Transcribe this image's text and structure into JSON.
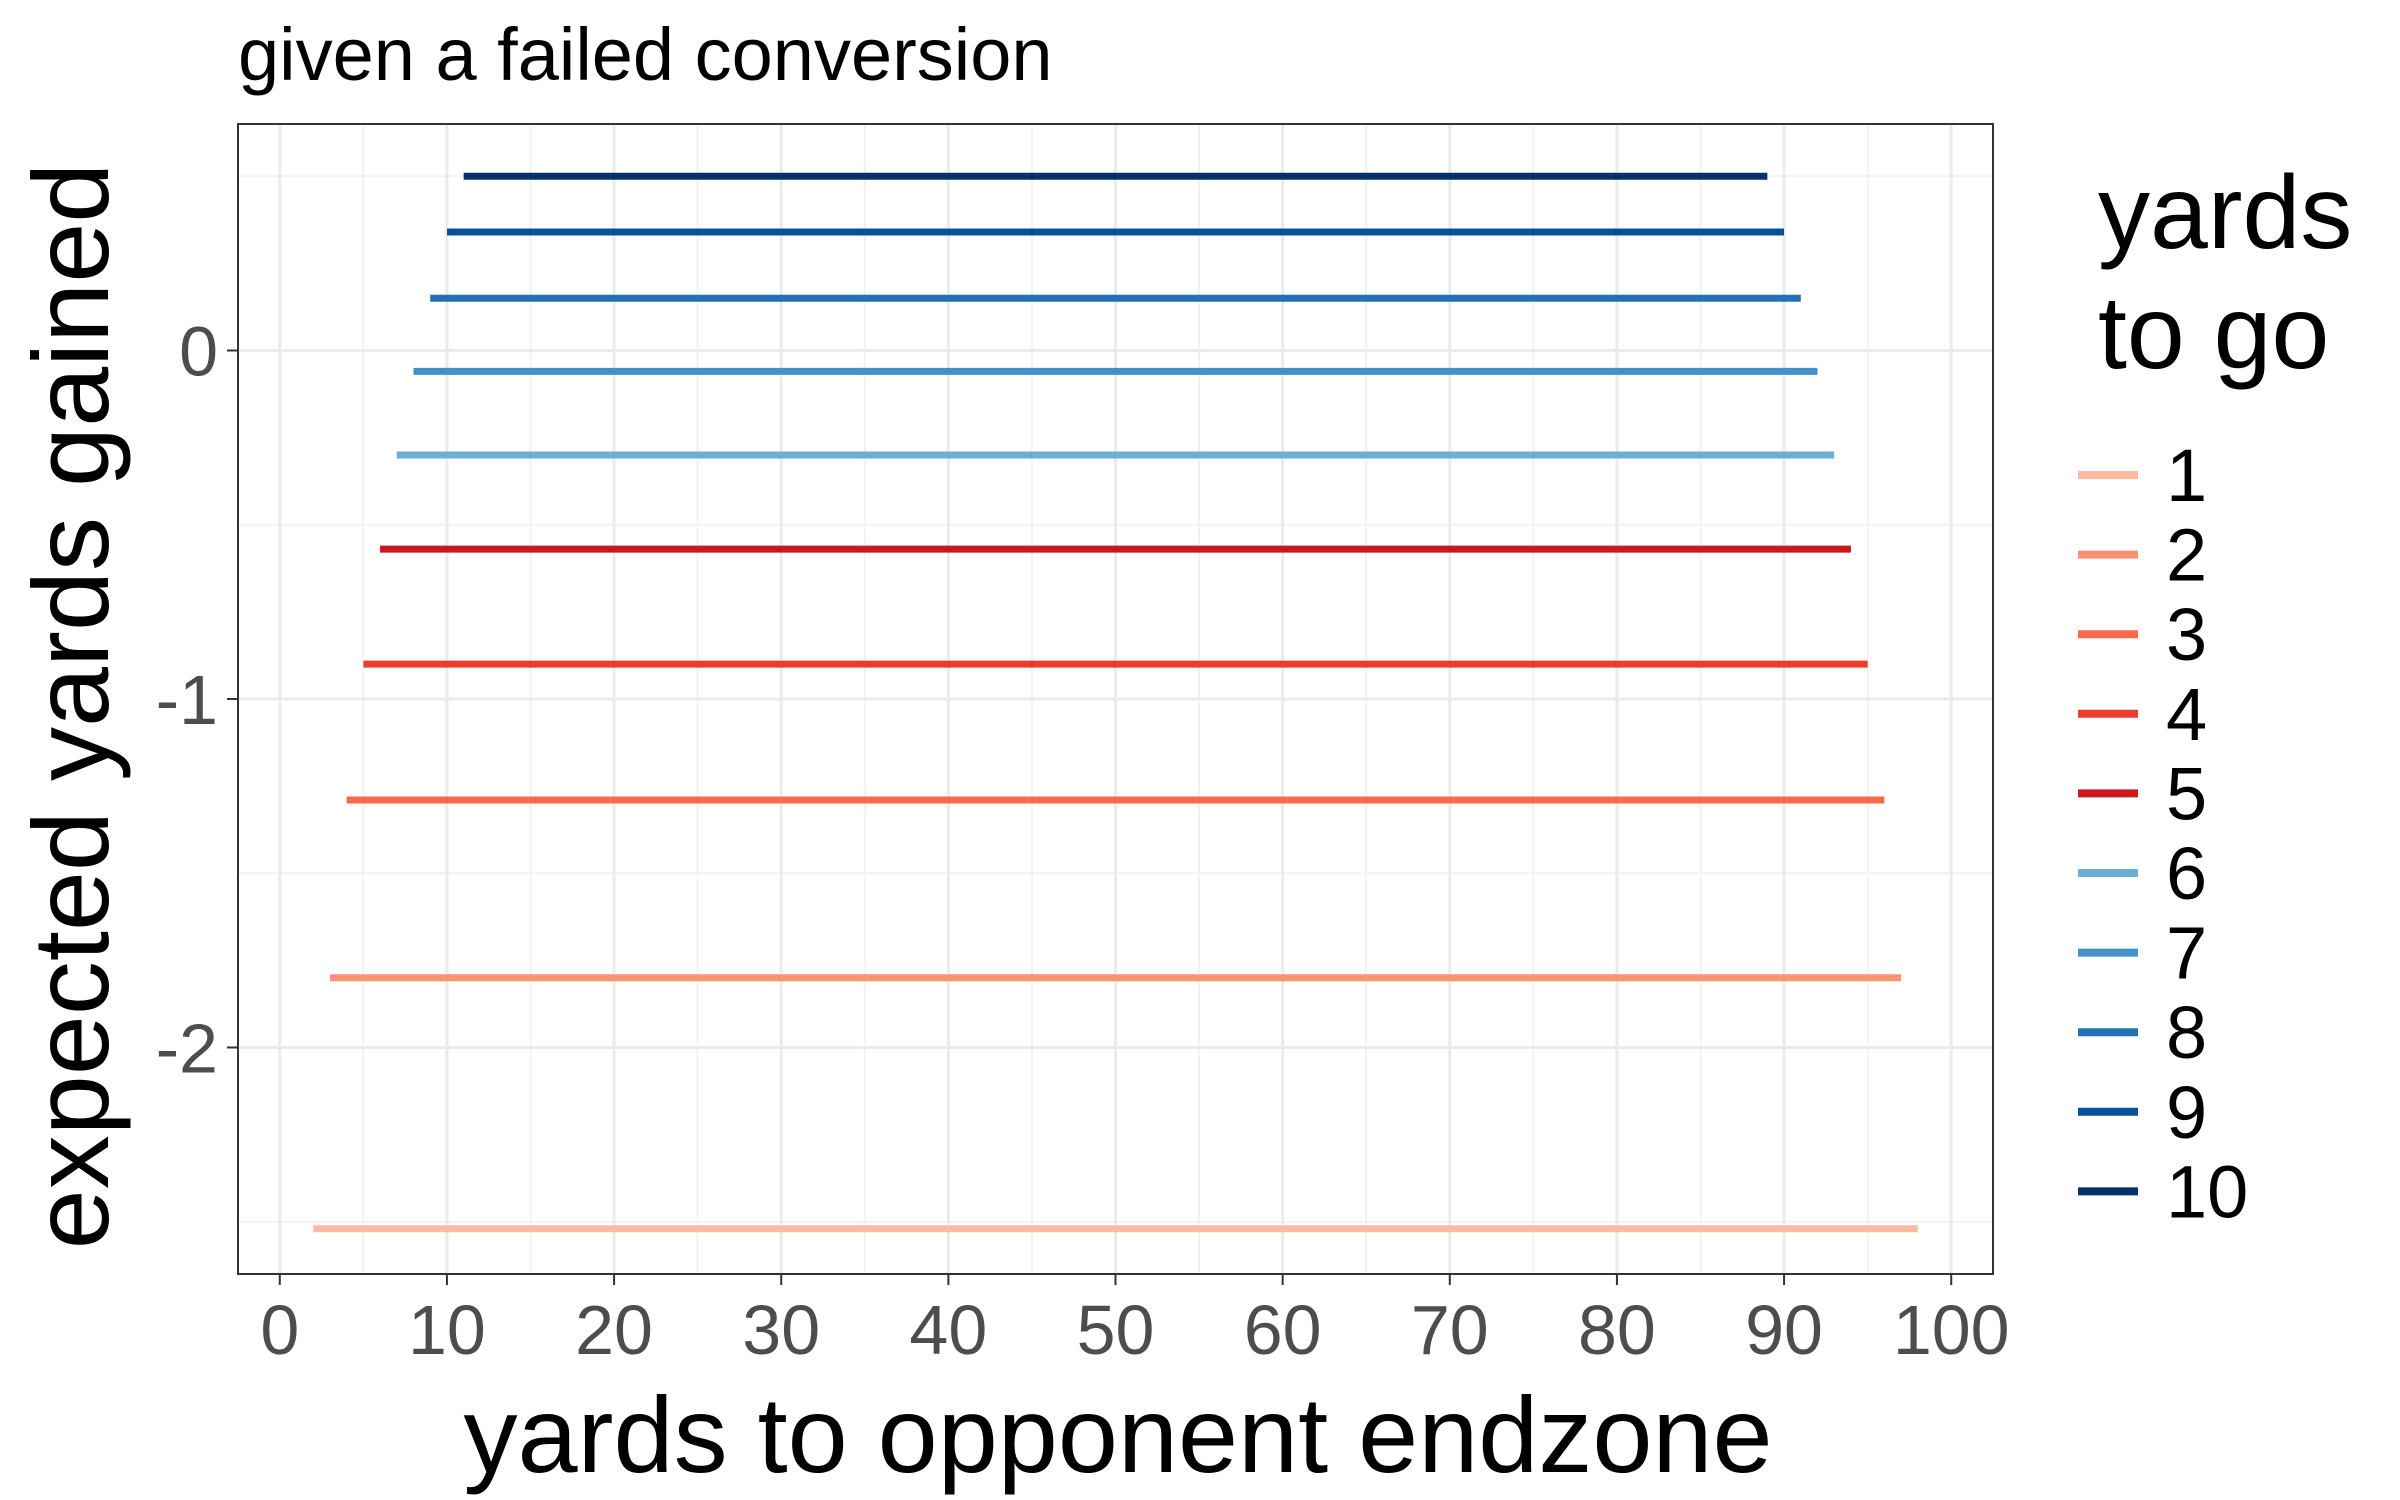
{
  "chart_data": {
    "type": "line",
    "title": "given a failed conversion",
    "xlabel": "yards to opponent endzone",
    "ylabel": "expected yards gained",
    "xlim": [
      -2.5,
      102.5
    ],
    "ylim": [
      -2.65,
      0.65
    ],
    "x_ticks": [
      0,
      10,
      20,
      30,
      40,
      50,
      60,
      70,
      80,
      90,
      100
    ],
    "x_tick_labels": [
      "0",
      "10",
      "20",
      "30",
      "40",
      "50",
      "60",
      "70",
      "80",
      "90",
      "100"
    ],
    "y_ticks": [
      0,
      -1,
      -2
    ],
    "y_tick_labels": [
      "0",
      "-1",
      "-2"
    ],
    "grid": true,
    "legend": {
      "title_lines": [
        "yards",
        "to go"
      ],
      "position": "right"
    },
    "series": [
      {
        "name": "1",
        "color": "#fcbba1",
        "x": [
          2,
          98
        ],
        "y": [
          -2.52,
          -2.52
        ]
      },
      {
        "name": "2",
        "color": "#fc9272",
        "x": [
          3,
          97
        ],
        "y": [
          -1.8,
          -1.8
        ]
      },
      {
        "name": "3",
        "color": "#fb6a4a",
        "x": [
          4,
          96
        ],
        "y": [
          -1.29,
          -1.29
        ]
      },
      {
        "name": "4",
        "color": "#ef3b2c",
        "x": [
          5,
          95
        ],
        "y": [
          -0.9,
          -0.9
        ]
      },
      {
        "name": "5",
        "color": "#cb181d",
        "x": [
          6,
          94
        ],
        "y": [
          -0.57,
          -0.57
        ]
      },
      {
        "name": "6",
        "color": "#6baed6",
        "x": [
          7,
          93
        ],
        "y": [
          -0.3,
          -0.3
        ]
      },
      {
        "name": "7",
        "color": "#4292c6",
        "x": [
          8,
          92
        ],
        "y": [
          -0.06,
          -0.06
        ]
      },
      {
        "name": "8",
        "color": "#2171b5",
        "x": [
          9,
          91
        ],
        "y": [
          0.15,
          0.15
        ]
      },
      {
        "name": "9",
        "color": "#08519c",
        "x": [
          10,
          90
        ],
        "y": [
          0.34,
          0.34
        ]
      },
      {
        "name": "10",
        "color": "#08306b",
        "x": [
          11,
          89
        ],
        "y": [
          0.5,
          0.5
        ]
      }
    ]
  }
}
